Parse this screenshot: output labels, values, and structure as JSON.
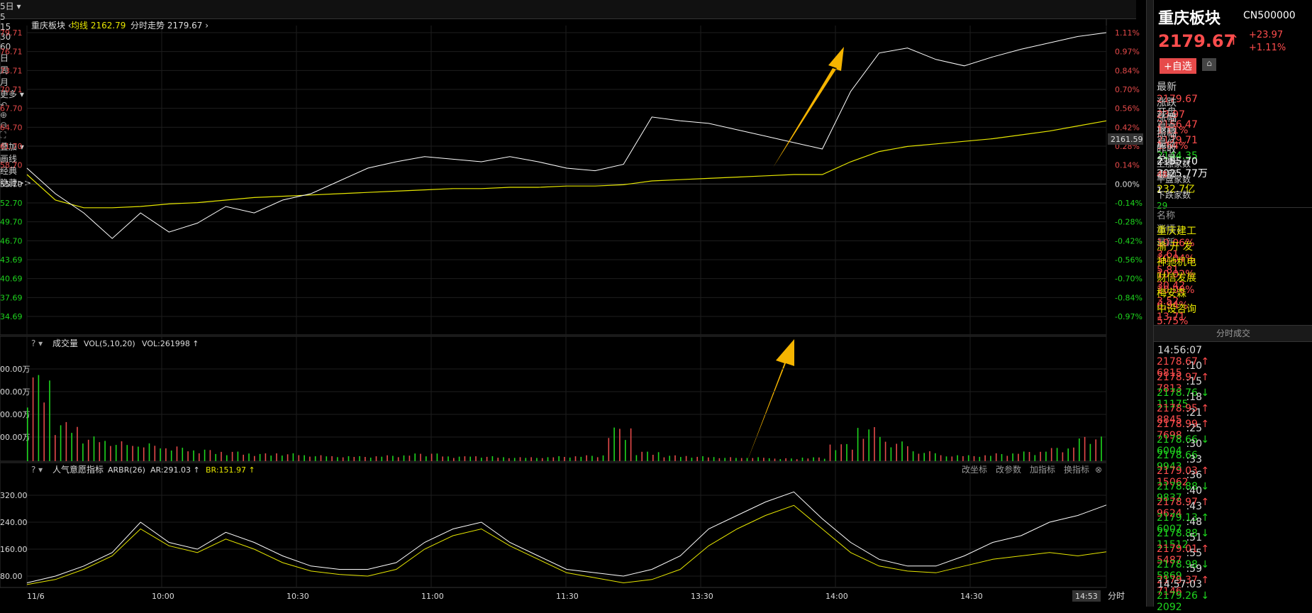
{
  "toolbar": {
    "period_items": [
      "5日",
      "5",
      "15",
      "30",
      "60",
      "日",
      "周",
      "月",
      "更多"
    ],
    "right_items": [
      "叠加",
      "画线",
      "经典",
      "隐藏>>"
    ],
    "icons": [
      "undo-icon",
      "zoom-in-icon",
      "zoom-out-icon",
      "fullscreen-icon"
    ]
  },
  "price_panel": {
    "title": "重庆板块",
    "avg_label": "均线",
    "avg_value": "2162.79",
    "trend_label": "分时走势",
    "trend_value": "2179.67",
    "left_ticks": [
      "79.71",
      "76.71",
      "73.71",
      "70.71",
      "67.70",
      "64.70",
      "61.70",
      "58.70",
      "55.70",
      "52.70",
      "49.70",
      "46.70",
      "43.69",
      "40.69",
      "37.69",
      "34.69"
    ],
    "right_ticks": [
      "1.11%",
      "0.97%",
      "0.84%",
      "0.70%",
      "0.56%",
      "0.42%",
      "0.28%",
      "0.14%",
      "0.00%",
      "-0.14%",
      "-0.28%",
      "-0.42%",
      "-0.56%",
      "-0.70%",
      "-0.84%",
      "-0.97%"
    ],
    "avg_tag": "2161.59"
  },
  "volume_panel": {
    "title": "成交量",
    "indicator": "VOL(5,10,20)",
    "vol_value": "VOL:261998",
    "left_ticks": [
      "00.00万",
      "00.00万",
      "00.00万",
      "00.00万"
    ]
  },
  "arbr_panel": {
    "title": "人气意愿指标",
    "indicator": "ARBR(26)",
    "ar_value": "AR:291.03",
    "br_value": "BR:151.97",
    "buttons": [
      "改坐标",
      "改参数",
      "加指标",
      "换指标"
    ],
    "left_ticks": [
      "320.00",
      "240.00",
      "160.00",
      "80.00"
    ]
  },
  "x_axis": {
    "labels": [
      "11/6",
      "10:00",
      "10:30",
      "11:00",
      "11:30",
      "13:30",
      "14:00",
      "14:30"
    ],
    "cursor_time": "14:53",
    "unit": "分时"
  },
  "side": {
    "name": "重庆板块",
    "code": "CN500000",
    "price": "2179.67",
    "change": "+23.97",
    "change_pct": "+1.11%",
    "add_button": "+自选",
    "stats": [
      {
        "l1": "最新",
        "v1": "2179.67",
        "l2": "开盘",
        "v2": "2156.47",
        "c1": "red",
        "c2": "red"
      },
      {
        "l1": "涨跌",
        "v1": "23.97",
        "l2": "最高",
        "v2": "2179.71",
        "c1": "red",
        "c2": "red"
      },
      {
        "l1": "涨幅",
        "v1": "1.11%",
        "l2": "最低",
        "v2": "2144.35",
        "c1": "red",
        "c2": "green"
      },
      {
        "l1": "振幅",
        "v1": "1.64%",
        "l2": "总量",
        "v2": "2025.77万",
        "c1": "red",
        "c2": "wht"
      },
      {
        "l1": "昨收",
        "v1": "2155.70",
        "l2": "金额",
        "v2": "232.7亿",
        "c1": "wht",
        "c2": "yel"
      }
    ],
    "breadth": [
      {
        "label": "上涨家数",
        "value": "48",
        "color": "red"
      },
      {
        "label": "平盘家数",
        "value": "1",
        "color": "wht"
      },
      {
        "label": "下跌家数",
        "value": "29",
        "color": "green"
      }
    ],
    "rank_header": [
      "名称",
      "涨幅↓",
      "最新"
    ],
    "rank": [
      {
        "name": "重庆建工",
        "pct": "10.06%",
        "price": "3.61"
      },
      {
        "name": "渝 开 发",
        "pct": "10.04%",
        "price": "5.81"
      },
      {
        "name": "神驰机电",
        "pct": "10.02%",
        "price": "30.42"
      },
      {
        "name": "财信发展",
        "pct": "10.00%",
        "price": "3.52"
      },
      {
        "name": "梅安森",
        "pct": "6.94%",
        "price": "13.71"
      },
      {
        "name": "中设咨询",
        "pct": "5.75%",
        "price": "8.83"
      }
    ],
    "ticks_title": "分时成交",
    "ticks": [
      {
        "t": "14:56:07",
        "p": "2178.67",
        "d": "↑",
        "v": "6815",
        "c": "red"
      },
      {
        "t": ":10",
        "p": "2178.97",
        "d": "↑",
        "v": "7813",
        "c": "red"
      },
      {
        "t": ":15",
        "p": "2178.76",
        "d": "↓",
        "v": "11175",
        "c": "green"
      },
      {
        "t": ":18",
        "p": "2178.95",
        "d": "↑",
        "v": "8845",
        "c": "red"
      },
      {
        "t": ":21",
        "p": "2178.99",
        "d": "↑",
        "v": "7698",
        "c": "red"
      },
      {
        "t": ":25",
        "p": "2178.66",
        "d": "↓",
        "v": "6004",
        "c": "green"
      },
      {
        "t": ":30",
        "p": "2178.66",
        "d": "",
        "v": "9943",
        "c": "green"
      },
      {
        "t": ":33",
        "p": "2179.03",
        "d": "↑",
        "v": "15062",
        "c": "red"
      },
      {
        "t": ":36",
        "p": "2178.88",
        "d": "↓",
        "v": "9837",
        "c": "green"
      },
      {
        "t": ":40",
        "p": "2178.97",
        "d": "↑",
        "v": "9624",
        "c": "red"
      },
      {
        "t": ":43",
        "p": "2179.13",
        "d": "↑",
        "v": "6007",
        "c": "green"
      },
      {
        "t": ":48",
        "p": "2178.88",
        "d": "↓",
        "v": "11512",
        "c": "green"
      },
      {
        "t": ":51",
        "p": "2179.01",
        "d": "↑",
        "v": "5487",
        "c": "red"
      },
      {
        "t": ":55",
        "p": "2178.98",
        "d": "↓",
        "v": "5869",
        "c": "green"
      },
      {
        "t": ":59",
        "p": "2179.37",
        "d": "↑",
        "v": "7146",
        "c": "red"
      },
      {
        "t": "14:57:03",
        "p": "2179.26",
        "d": "↓",
        "v": "2092",
        "c": "green"
      }
    ]
  },
  "chart_data": {
    "type": "line",
    "title": "重庆板块",
    "x_labels": [
      "11/6",
      "10:00",
      "10:30",
      "11:00",
      "11:30",
      "13:30",
      "14:00",
      "14:30"
    ],
    "y_pct_range": [
      -1.11,
      1.11
    ],
    "series": [
      {
        "name": "分时走势",
        "values": [
          0.05,
          -0.15,
          -0.3,
          -0.5,
          -0.3,
          -0.45,
          -0.38,
          -0.25,
          -0.3,
          -0.2,
          -0.15,
          -0.05,
          0.05,
          0.1,
          0.14,
          0.12,
          0.1,
          0.14,
          0.1,
          0.05,
          0.03,
          0.08,
          0.45,
          0.42,
          0.4,
          0.35,
          0.3,
          0.25,
          0.2,
          0.65,
          0.95,
          0.99,
          0.9,
          0.85,
          0.92,
          0.98,
          1.03,
          1.08,
          1.11
        ]
      },
      {
        "name": "均线",
        "values": [
          0.0,
          -0.2,
          -0.26,
          -0.26,
          -0.25,
          -0.23,
          -0.22,
          -0.2,
          -0.18,
          -0.17,
          -0.16,
          -0.15,
          -0.14,
          -0.13,
          -0.12,
          -0.11,
          -0.11,
          -0.1,
          -0.1,
          -0.09,
          -0.09,
          -0.08,
          -0.05,
          -0.04,
          -0.03,
          -0.02,
          -0.01,
          0.0,
          0.0,
          0.1,
          0.18,
          0.22,
          0.24,
          0.26,
          0.28,
          0.31,
          0.34,
          0.38,
          0.42
        ]
      }
    ],
    "volume": [
      90,
      40,
      25,
      20,
      18,
      15,
      12,
      10,
      8,
      8,
      6,
      5,
      5,
      6,
      8,
      5,
      5,
      4,
      4,
      5,
      6,
      35,
      10,
      6,
      5,
      4,
      4,
      3,
      4,
      18,
      35,
      20,
      10,
      6,
      6,
      8,
      10,
      14,
      25
    ],
    "arbr": {
      "AR": [
        60,
        80,
        110,
        150,
        240,
        180,
        160,
        210,
        180,
        140,
        110,
        100,
        100,
        120,
        180,
        220,
        240,
        180,
        140,
        100,
        90,
        80,
        100,
        140,
        220,
        260,
        300,
        330,
        250,
        180,
        130,
        110,
        110,
        140,
        180,
        200,
        240,
        260,
        291
      ],
      "BR": [
        55,
        70,
        100,
        140,
        220,
        170,
        150,
        190,
        160,
        120,
        95,
        85,
        80,
        100,
        160,
        200,
        220,
        170,
        130,
        90,
        75,
        60,
        70,
        100,
        170,
        220,
        260,
        290,
        220,
        150,
        110,
        95,
        90,
        110,
        130,
        140,
        150,
        140,
        152
      ]
    }
  }
}
